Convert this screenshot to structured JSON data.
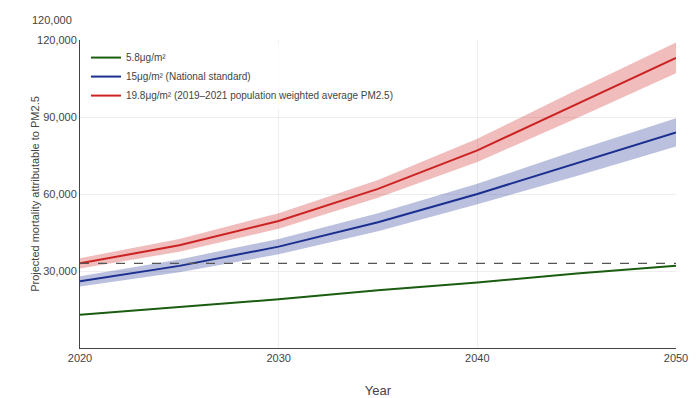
{
  "chart_data": {
    "type": "line",
    "xlabel": "Year",
    "ylabel": "Projected mortality attributable to PM2.5",
    "x": [
      2020,
      2025,
      2030,
      2035,
      2040,
      2045,
      2050
    ],
    "xlim": [
      2020,
      2050
    ],
    "xticks": [
      2020,
      2030,
      2040,
      2050
    ],
    "ylim": [
      0,
      120000
    ],
    "yticks": [
      {
        "value": 30000,
        "label": "30,000"
      },
      {
        "value": 60000,
        "label": "60,000"
      },
      {
        "value": 90000,
        "label": "90,000"
      },
      {
        "value": 120000,
        "label": "120,000"
      }
    ],
    "grid": true,
    "legend": "upper left",
    "series": [
      {
        "name": "19.8μg/m² (2019–2021 population weighted average PM2.5)",
        "color": "#cc2222",
        "values": [
          33000,
          40000,
          49500,
          62000,
          77000,
          95000,
          113000
        ],
        "lower": [
          31000,
          37500,
          46500,
          58500,
          72500,
          89500,
          107000
        ],
        "upper": [
          35000,
          42500,
          52500,
          65500,
          81500,
          100500,
          119000
        ]
      },
      {
        "name": "15μg/m² (National standard)",
        "color": "#1a2f8f",
        "values": [
          26000,
          32000,
          39500,
          49000,
          60000,
          72000,
          84000
        ],
        "lower": [
          24000,
          29500,
          36500,
          45500,
          56000,
          67000,
          78500
        ],
        "upper": [
          28000,
          34500,
          42500,
          52500,
          64000,
          77000,
          89500
        ]
      },
      {
        "name": "5.8μg/m²",
        "color": "#1a5c10",
        "values": [
          13000,
          16000,
          19000,
          22500,
          25500,
          29000,
          32000
        ]
      }
    ],
    "reference_lines": [
      {
        "y": 33000,
        "color": "#555555",
        "line_style": "dashed"
      }
    ],
    "annotations": [
      {
        "text": "120,000"
      }
    ]
  }
}
